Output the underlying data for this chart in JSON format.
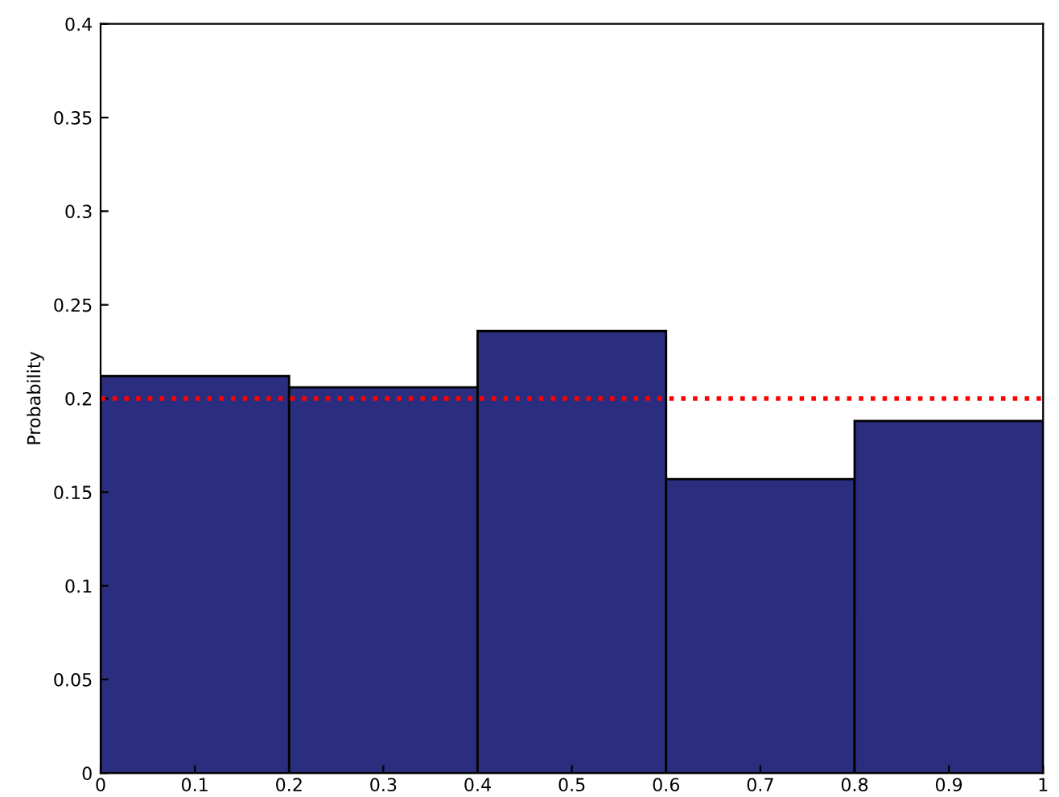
{
  "chart_data": {
    "type": "histogram",
    "ylabel": "Probability",
    "bins": [
      0,
      0.2,
      0.4,
      0.6,
      0.8,
      1
    ],
    "values": [
      0.212,
      0.206,
      0.236,
      0.157,
      0.188
    ],
    "color": "#2b2d7f",
    "xlim": [
      0,
      1
    ],
    "ylim": [
      0,
      0.4
    ],
    "xticks": [
      0,
      0.1,
      0.2,
      0.3,
      0.4,
      0.5,
      0.6,
      0.7,
      0.8,
      0.9,
      1
    ],
    "yticks": [
      0,
      0.05,
      0.1,
      0.15,
      0.2,
      0.25,
      0.3,
      0.35,
      0.4
    ],
    "ref_lines": [
      {
        "axis": "y",
        "value": 0.2,
        "color": "#ff0000",
        "line_style": "dotted"
      }
    ],
    "grid": false
  }
}
